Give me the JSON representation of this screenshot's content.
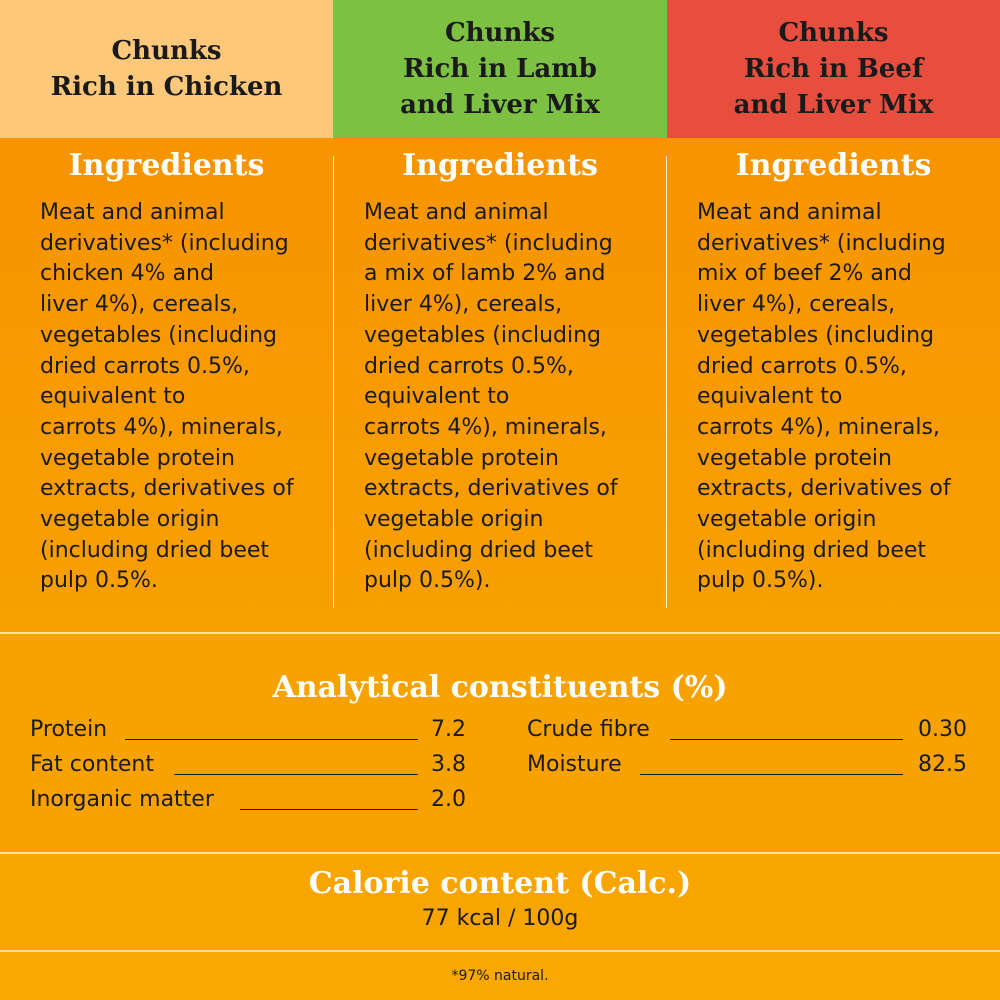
{
  "header": {
    "col1": "Chunks\nRich in Chicken",
    "col2": "Chunks\nRich in Lamb\nand Liver Mix",
    "col3": "Chunks\nRich in Beef\nand Liver Mix"
  },
  "ingredients": {
    "title": "Ingredients",
    "col1": "Meat and animal\nderivatives* (including\nchicken 4% and\nliver 4%), cereals,\nvegetables (including\ndried carrots 0.5%,\nequivalent to\ncarrots 4%), minerals,\nvegetable protein\nextracts, derivatives of\nvegetable origin\n(including dried beet\npulp 0.5%.",
    "col2": "Meat and animal\nderivatives* (including\na mix of lamb 2% and\nliver 4%), cereals,\nvegetables (including\ndried carrots 0.5%,\nequivalent to\ncarrots 4%), minerals,\nvegetable protein\nextracts, derivatives of\nvegetable origin\n(including dried beet\npulp 0.5%).",
    "col3": "Meat and animal\nderivatives* (including\nmix of beef 2% and\nliver 4%), cereals,\nvegetables (including\ndried carrots 0.5%,\nequivalent to\ncarrots 4%), minerals,\nvegetable protein\nextracts, derivatives of\nvegetable origin\n(including dried beet\npulp 0.5%)."
  },
  "analytical": {
    "title": "Analytical constituents (%)",
    "rows": [
      {
        "label": "Protein",
        "value": "7.2"
      },
      {
        "label": "Fat content",
        "value": "3.8"
      },
      {
        "label": "Inorganic matter",
        "value": "2.0"
      },
      {
        "label": "Crude fibre",
        "value": "0.30"
      },
      {
        "label": "Moisture",
        "value": "82.5"
      }
    ]
  },
  "calorie": {
    "title": "Calorie content (Calc.)",
    "value": "77 kcal / 100g"
  },
  "footnote": "*97% natural.",
  "colors": {
    "chicken": "#fdc87a",
    "lamb": "#7dc142",
    "beef": "#e84e3e",
    "background": "#f7a600"
  }
}
